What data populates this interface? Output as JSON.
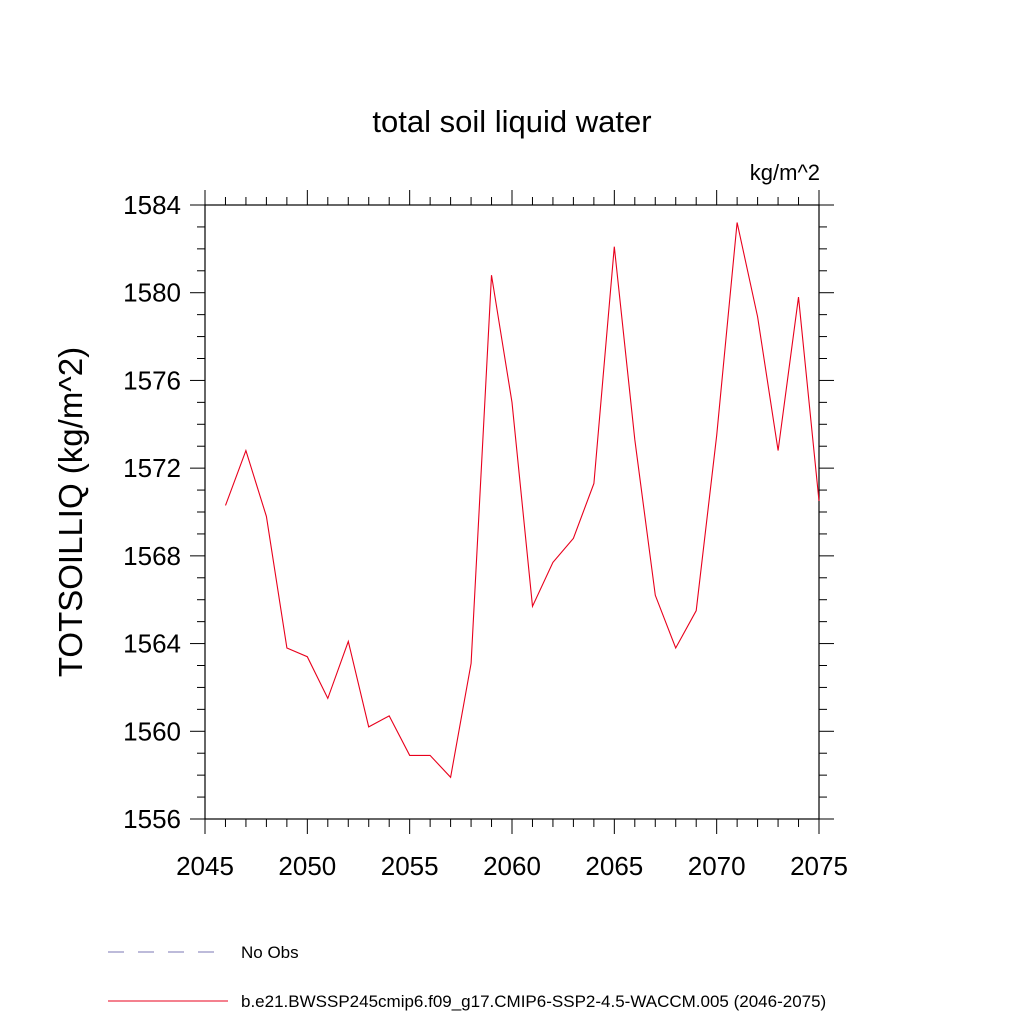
{
  "chart_data": {
    "type": "line",
    "title": "total soil liquid water",
    "units": "kg/m^2",
    "ylabel": "TOTSOILLIQ  (kg/m^2)",
    "xlabel": "",
    "xlim": [
      2045,
      2075
    ],
    "ylim": [
      1556,
      1584
    ],
    "x_ticks": [
      2045,
      2050,
      2055,
      2060,
      2065,
      2070,
      2075
    ],
    "y_ticks": [
      1556,
      1560,
      1564,
      1568,
      1572,
      1576,
      1580,
      1584
    ],
    "grid": false,
    "legend_position": "bottom",
    "series": [
      {
        "name": "b.e21.BWSSP245cmip6.f09_g17.CMIP6-SSP2-4.5-WACCM.005 (2046-2075)",
        "color": "#e8001c",
        "x": [
          2046,
          2047,
          2048,
          2049,
          2050,
          2051,
          2052,
          2053,
          2054,
          2055,
          2056,
          2057,
          2058,
          2059,
          2060,
          2061,
          2062,
          2063,
          2064,
          2065,
          2066,
          2067,
          2068,
          2069,
          2070,
          2071,
          2072,
          2073,
          2074,
          2075
        ],
        "values": [
          1570.3,
          1572.8,
          1569.8,
          1563.8,
          1563.4,
          1561.5,
          1564.1,
          1560.2,
          1560.7,
          1558.9,
          1558.9,
          1557.9,
          1563.1,
          1580.8,
          1575.0,
          1565.7,
          1567.7,
          1568.8,
          1571.3,
          1582.1,
          1573.3,
          1566.2,
          1563.8,
          1565.5,
          1573.5,
          1583.2,
          1578.9,
          1572.8,
          1579.8,
          1570.5
        ]
      }
    ],
    "legend": [
      {
        "label": "No Obs",
        "style": "dashed",
        "color": "#7b77b5"
      },
      {
        "label": "b.e21.BWSSP245cmip6.f09_g17.CMIP6-SSP2-4.5-WACCM.005 (2046-2075)",
        "style": "solid",
        "color": "#e8001c"
      }
    ]
  }
}
